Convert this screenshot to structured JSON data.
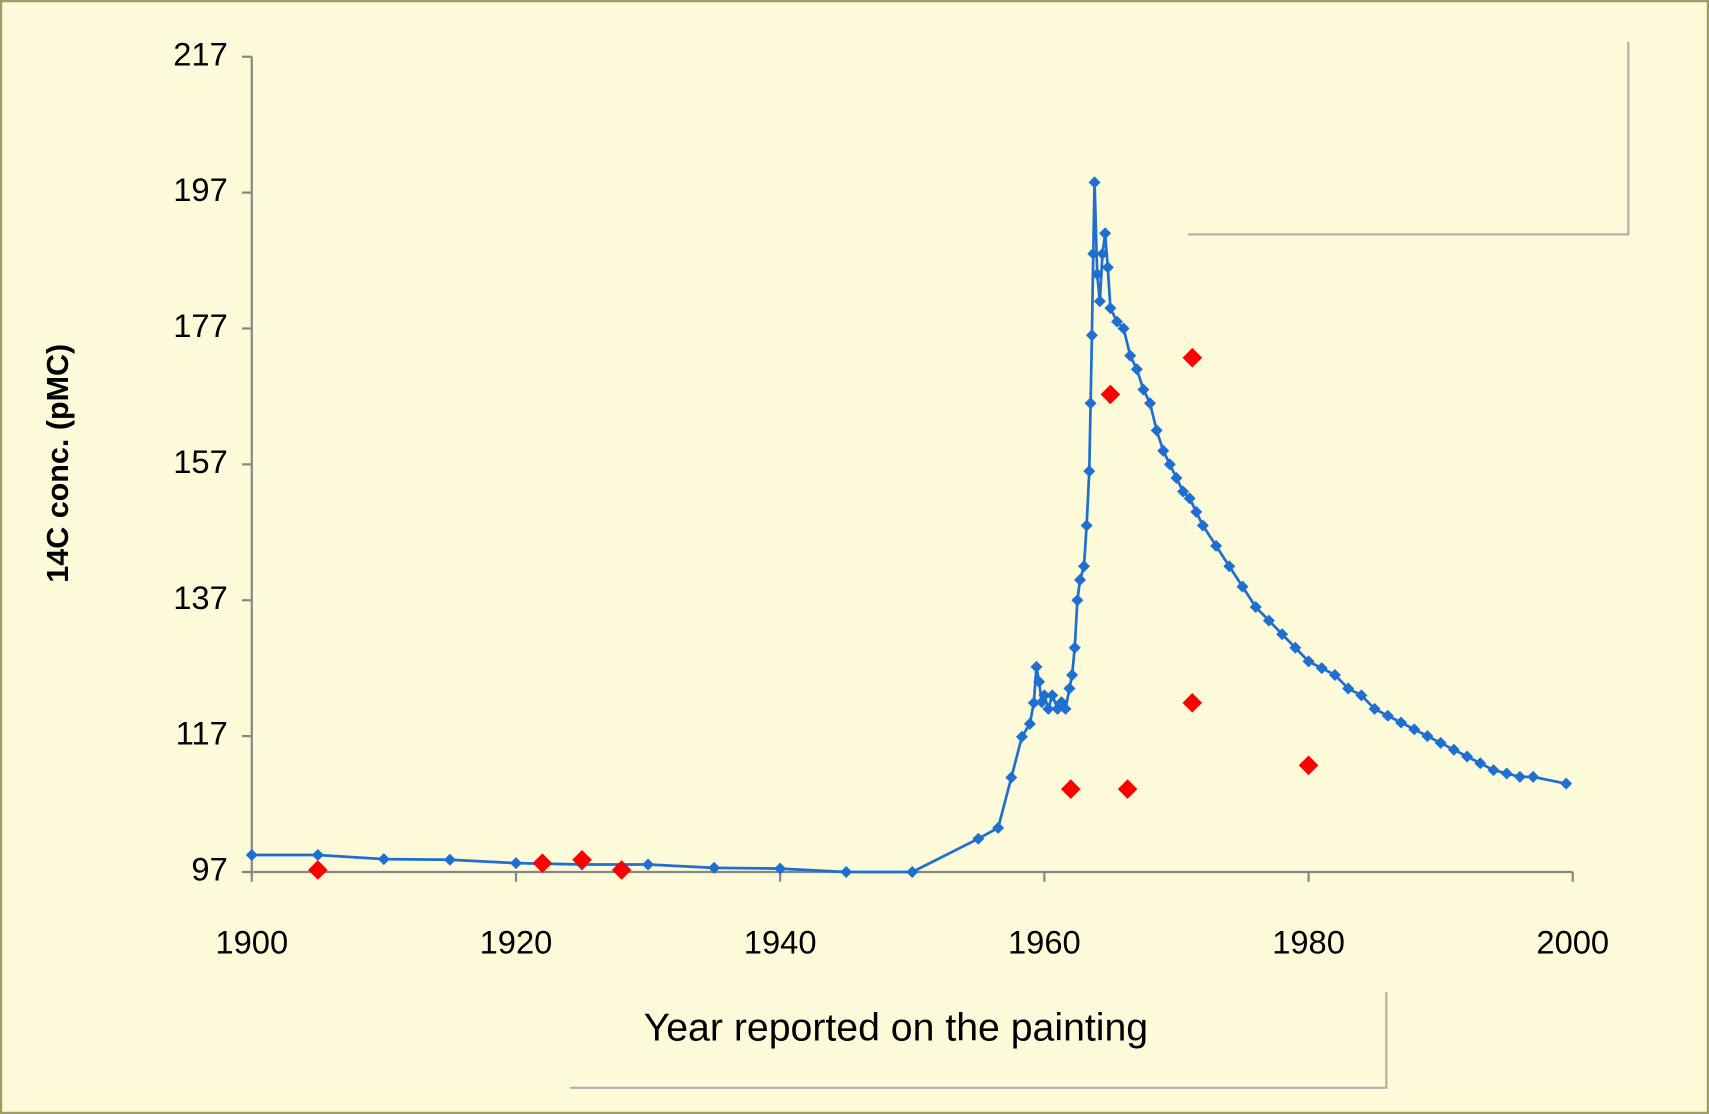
{
  "chart_data": {
    "type": "line",
    "x_label": "Year reported on the painting",
    "y_label": "14C conc. (pMC)",
    "xlim": [
      1900,
      2000
    ],
    "xticks": [
      1900,
      1920,
      1940,
      1960,
      1980,
      2000
    ],
    "ylim": [
      97,
      217
    ],
    "yticks": [
      97,
      117,
      137,
      157,
      177,
      197,
      217
    ],
    "grid": false,
    "series": [
      {
        "color": "#1f6fd1",
        "marker": "diamond",
        "line": true,
        "x": [
          1900,
          1905,
          1910,
          1915,
          1920,
          1925,
          1930,
          1935,
          1940,
          1945,
          1950,
          1955,
          1956.5,
          1957.5,
          1958.3,
          1958.9,
          1959.2,
          1959.4,
          1959.6,
          1959.8,
          1960,
          1960.3,
          1960.6,
          1961,
          1961.3,
          1961.6,
          1961.9,
          1962.1,
          1962.3,
          1962.5,
          1962.7,
          1963,
          1963.2,
          1963.4,
          1963.5,
          1963.6,
          1963.7,
          1963.8,
          1964,
          1964.2,
          1964.4,
          1964.6,
          1964.8,
          1965,
          1965.5,
          1966,
          1966.5,
          1967,
          1967.5,
          1968,
          1968.5,
          1969,
          1969.5,
          1970,
          1970.5,
          1971,
          1971.5,
          1972,
          1973,
          1974,
          1975,
          1976,
          1977,
          1978,
          1979,
          1980,
          1981,
          1982,
          1983,
          1984,
          1985,
          1986,
          1987,
          1988,
          1989,
          1990,
          1991,
          1992,
          1993,
          1994,
          1995,
          1996,
          1997,
          1999.5
        ],
        "values": [
          99.5,
          99.5,
          98.9,
          98.8,
          98.3,
          98.1,
          98.1,
          97.6,
          97.5,
          97.0,
          97.0,
          101.9,
          103.5,
          110.9,
          116.9,
          118.8,
          121.9,
          127.2,
          125,
          122,
          123,
          121,
          123,
          121,
          122,
          121,
          124,
          126,
          130,
          137,
          140,
          142,
          148,
          156,
          166,
          176,
          188,
          198.5,
          185,
          181,
          188,
          191,
          186,
          180,
          178,
          177,
          173,
          171,
          168,
          166,
          162,
          159,
          157,
          155,
          153,
          152,
          150,
          148,
          145,
          142,
          139,
          136,
          134,
          132,
          130,
          128,
          127,
          126,
          124,
          123,
          121,
          120,
          119,
          118,
          117,
          116,
          115,
          114,
          113,
          112,
          111.5,
          111,
          111,
          110
        ]
      },
      {
        "color": "#ff0000",
        "marker": "diamond",
        "line": false,
        "x": [
          1905,
          1922,
          1925,
          1928,
          1962,
          1965,
          1966.3,
          1971.2,
          1971.2,
          1980
        ],
        "values": [
          97.3,
          98.3,
          98.8,
          97.3,
          109.2,
          167.3,
          109.2,
          172.7,
          121.9,
          112.7
        ]
      }
    ]
  }
}
